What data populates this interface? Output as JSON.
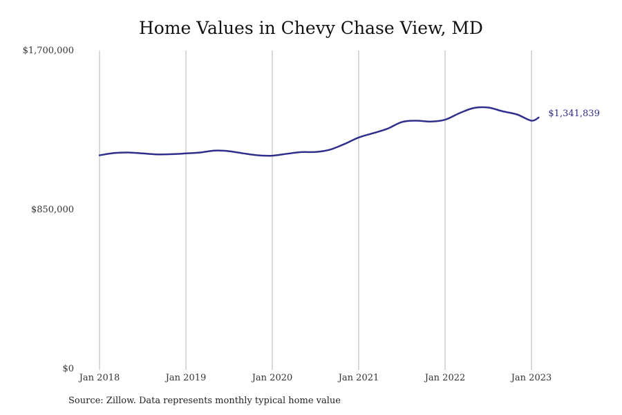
{
  "chart_data": {
    "type": "line",
    "title": "Home Values in Chevy Chase View, MD",
    "xlabel": "",
    "ylabel": "",
    "ylim": [
      0,
      1700000
    ],
    "y_ticks": [
      {
        "value": 0,
        "label": "$0"
      },
      {
        "value": 850000,
        "label": "$850,000"
      },
      {
        "value": 1700000,
        "label": "$1,700,000"
      }
    ],
    "x_ticks": [
      {
        "value": "2018-01",
        "label": "Jan 2018"
      },
      {
        "value": "2019-01",
        "label": "Jan 2019"
      },
      {
        "value": "2020-01",
        "label": "Jan 2020"
      },
      {
        "value": "2021-01",
        "label": "Jan 2021"
      },
      {
        "value": "2022-01",
        "label": "Jan 2022"
      },
      {
        "value": "2023-01",
        "label": "Jan 2023"
      }
    ],
    "grid": "vertical",
    "line_color": "#2e2e8c",
    "series": [
      {
        "x": [
          "2018-01",
          "2018-03",
          "2018-05",
          "2018-07",
          "2018-09",
          "2018-11",
          "2019-01",
          "2019-03",
          "2019-05",
          "2019-07",
          "2019-09",
          "2019-11",
          "2020-01",
          "2020-03",
          "2020-05",
          "2020-07",
          "2020-09",
          "2020-11",
          "2021-01",
          "2021-03",
          "2021-05",
          "2021-07",
          "2021-09",
          "2021-11",
          "2022-01",
          "2022-03",
          "2022-05",
          "2022-07",
          "2022-09",
          "2022-11",
          "2023-01",
          "2023-02"
        ],
        "values": [
          1140000,
          1152000,
          1155000,
          1150000,
          1145000,
          1146000,
          1150000,
          1155000,
          1165000,
          1162000,
          1150000,
          1140000,
          1138000,
          1148000,
          1157000,
          1158000,
          1170000,
          1200000,
          1235000,
          1258000,
          1282000,
          1318000,
          1325000,
          1320000,
          1330000,
          1365000,
          1393000,
          1395000,
          1375000,
          1358000,
          1325000,
          1341839
        ]
      }
    ],
    "end_label": "$1,341,839"
  },
  "source_note": "Source: Zillow. Data represents monthly typical home value"
}
